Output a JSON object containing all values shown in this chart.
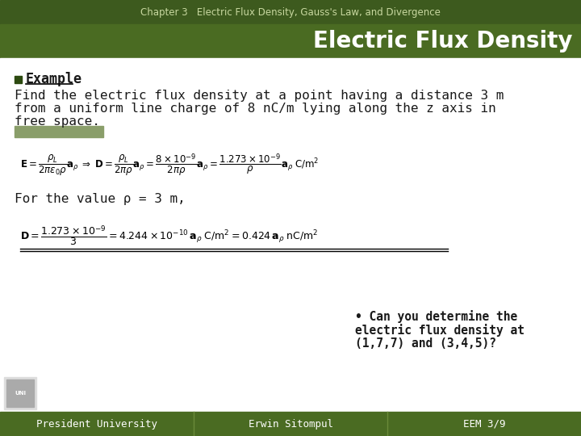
{
  "header_bg": "#3d5a1e",
  "header_text": "Chapter 3   Electric Flux Density, Gauss's Law, and Divergence",
  "header_text_color": "#c8d8a0",
  "title_text": "Electric Flux Density",
  "title_text_color": "#ffffff",
  "title_bg": "#4a6b22",
  "body_bg": "#ffffff",
  "example_label": "Example",
  "example_color": "#1a1a1a",
  "body_text_line1": "Find the electric flux density at a point having a distance 3 m",
  "body_text_line2": "from a uniform line charge of 8 nC/m lying along the z axis in",
  "body_text_line3": "free space.",
  "for_value_text": "For the value ρ = 3 m,",
  "bullet_color": "#2d4a10",
  "separator_color": "#8a9e6a",
  "footer_bg": "#4a6b22",
  "footer_left": "President University",
  "footer_center": "Erwin Sitompul",
  "footer_right": "EEM 3/9",
  "footer_text_color": "#ffffff",
  "question_text_line1": "• Can you determine the",
  "question_text_line2": "electric flux density at",
  "question_text_line3": "(1,7,7) and (3,4,5)?",
  "question_text_color": "#1a1a1a"
}
